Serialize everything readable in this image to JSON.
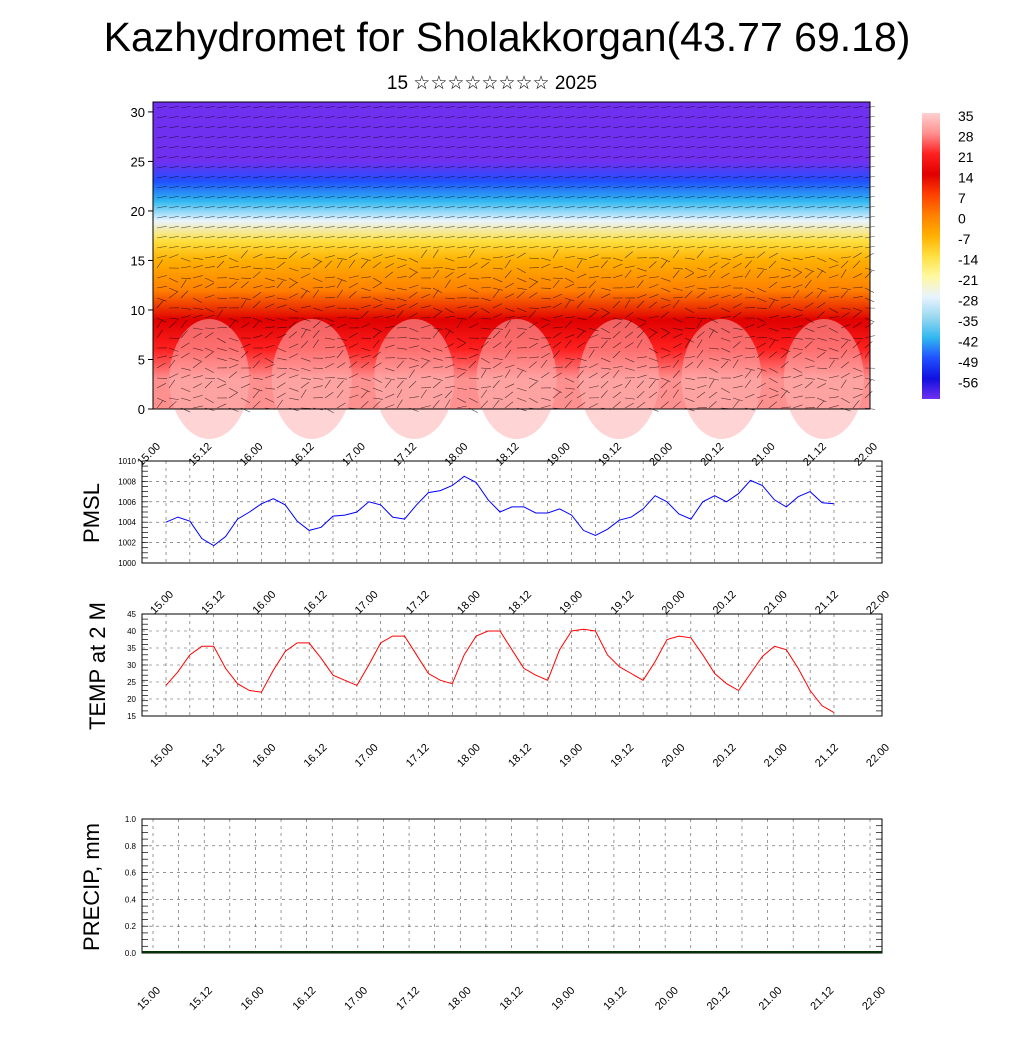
{
  "title": "Kazhydromet for Sholakkorgan(43.77 69.18)",
  "subtitle": "15 ☆☆☆☆☆☆☆☆ 2025",
  "chart_data": [
    {
      "type": "heatmap",
      "description_of_field": "air temperature vertical section with wind barbs",
      "yticks": [
        0,
        5,
        10,
        15,
        20,
        25,
        30
      ],
      "ylim": [
        0,
        31
      ],
      "xticks": [
        "15.00",
        "15.12",
        "16.00",
        "16.12",
        "17.00",
        "17.12",
        "18.00",
        "18.12",
        "19.00",
        "19.12",
        "20.00",
        "20.12",
        "21.00",
        "21.12",
        "22.00"
      ],
      "colorbar": {
        "labels": [
          "35",
          "28",
          "21",
          "14",
          "7",
          "0",
          "-7",
          "-14",
          "-21",
          "-28",
          "-35",
          "-42",
          "-49",
          "-56"
        ],
        "colors": [
          "#ffd0d0",
          "#ff9090",
          "#ff2020",
          "#e00000",
          "#ff4000",
          "#ff8000",
          "#ffb000",
          "#ffe040",
          "#fff8a0",
          "#e8f4ff",
          "#9ad8f0",
          "#30b8f0",
          "#2050ff",
          "#1010e0",
          "#7030f0"
        ]
      },
      "levels": [
        {
          "level": 0,
          "temp": 32
        },
        {
          "level": 3,
          "temp": 26
        },
        {
          "level": 6,
          "temp": 20
        },
        {
          "level": 9,
          "temp": 14
        },
        {
          "level": 12,
          "temp": 5
        },
        {
          "level": 15,
          "temp": -5
        },
        {
          "level": 17,
          "temp": -14
        },
        {
          "level": 19,
          "temp": -26
        },
        {
          "level": 21,
          "temp": -38
        },
        {
          "level": 23,
          "temp": -48
        },
        {
          "level": 25,
          "temp": -58
        },
        {
          "level": 27,
          "temp": -60
        },
        {
          "level": 31,
          "temp": -62
        }
      ]
    },
    {
      "type": "line",
      "ylabel": "PMSL",
      "ylim": [
        1000,
        1010
      ],
      "yticks": [
        1000,
        1002,
        1004,
        1006,
        1008,
        1010
      ],
      "xticks": [
        "15.00",
        "15.12",
        "16.00",
        "16.12",
        "17.00",
        "17.12",
        "18.00",
        "18.12",
        "19.00",
        "19.12",
        "20.00",
        "20.12",
        "21.00",
        "21.12",
        "22.00"
      ],
      "color": "#0000ff",
      "values": [
        1004.0,
        1004.5,
        1004.1,
        1002.4,
        1001.7,
        1002.6,
        1004.3,
        1005.0,
        1005.8,
        1006.3,
        1005.7,
        1004.1,
        1003.2,
        1003.5,
        1004.6,
        1004.7,
        1005.0,
        1006.0,
        1005.7,
        1004.5,
        1004.3,
        1005.7,
        1006.9,
        1007.1,
        1007.6,
        1008.5,
        1007.9,
        1006.2,
        1005.0,
        1005.5,
        1005.5,
        1004.9,
        1004.9,
        1005.3,
        1004.7,
        1003.2,
        1002.7,
        1003.3,
        1004.2,
        1004.5,
        1005.3,
        1006.6,
        1006.0,
        1004.8,
        1004.3,
        1006.0,
        1006.6,
        1006.0,
        1006.8,
        1008.1,
        1007.6,
        1006.2,
        1005.5,
        1006.5,
        1007.0,
        1005.9,
        1005.8
      ]
    },
    {
      "type": "line",
      "ylabel": "TEMP at 2 M",
      "ylim": [
        15,
        45
      ],
      "yticks": [
        15,
        20,
        25,
        30,
        35,
        40,
        45
      ],
      "xticks": [
        "15.00",
        "15.12",
        "16.00",
        "16.12",
        "17.00",
        "17.12",
        "18.00",
        "18.12",
        "19.00",
        "19.12",
        "20.00",
        "20.12",
        "21.00",
        "21.12",
        "22.00"
      ],
      "color": "#ff0000",
      "values": [
        24,
        28,
        33,
        35.5,
        35.5,
        29,
        24.5,
        22.5,
        22,
        28.5,
        34,
        36.5,
        36.5,
        32,
        27,
        25.5,
        24,
        30,
        36.5,
        38.5,
        38.5,
        33,
        27.5,
        25.5,
        24.5,
        33,
        38.5,
        40,
        40,
        34.5,
        29,
        27,
        25.5,
        34.5,
        40,
        40.5,
        40,
        33,
        29.5,
        27.5,
        25.5,
        31,
        37.5,
        38.5,
        38,
        33,
        27.5,
        24.5,
        22.5,
        27.5,
        32.5,
        35.5,
        34.5,
        29,
        22.5,
        18,
        16
      ]
    },
    {
      "type": "bar",
      "ylabel": "PRECIP, mm",
      "ylim": [
        0,
        1
      ],
      "yticks": [
        "0.0",
        "0.2",
        "0.4",
        "0.6",
        "0.8",
        "1.0"
      ],
      "xticks": [
        "15.00",
        "15.12",
        "16.00",
        "16.12",
        "17.00",
        "17.12",
        "18.00",
        "18.12",
        "19.00",
        "19.12",
        "20.00",
        "20.12",
        "21.00",
        "21.12",
        "22.00"
      ],
      "values": [
        0,
        0,
        0,
        0,
        0,
        0,
        0,
        0,
        0,
        0,
        0,
        0,
        0,
        0,
        0,
        0,
        0,
        0,
        0,
        0,
        0,
        0,
        0,
        0,
        0,
        0,
        0,
        0,
        0,
        0,
        0,
        0,
        0,
        0,
        0,
        0,
        0,
        0,
        0,
        0,
        0,
        0,
        0,
        0,
        0,
        0,
        0,
        0,
        0,
        0,
        0,
        0,
        0,
        0,
        0,
        0,
        0
      ]
    }
  ]
}
